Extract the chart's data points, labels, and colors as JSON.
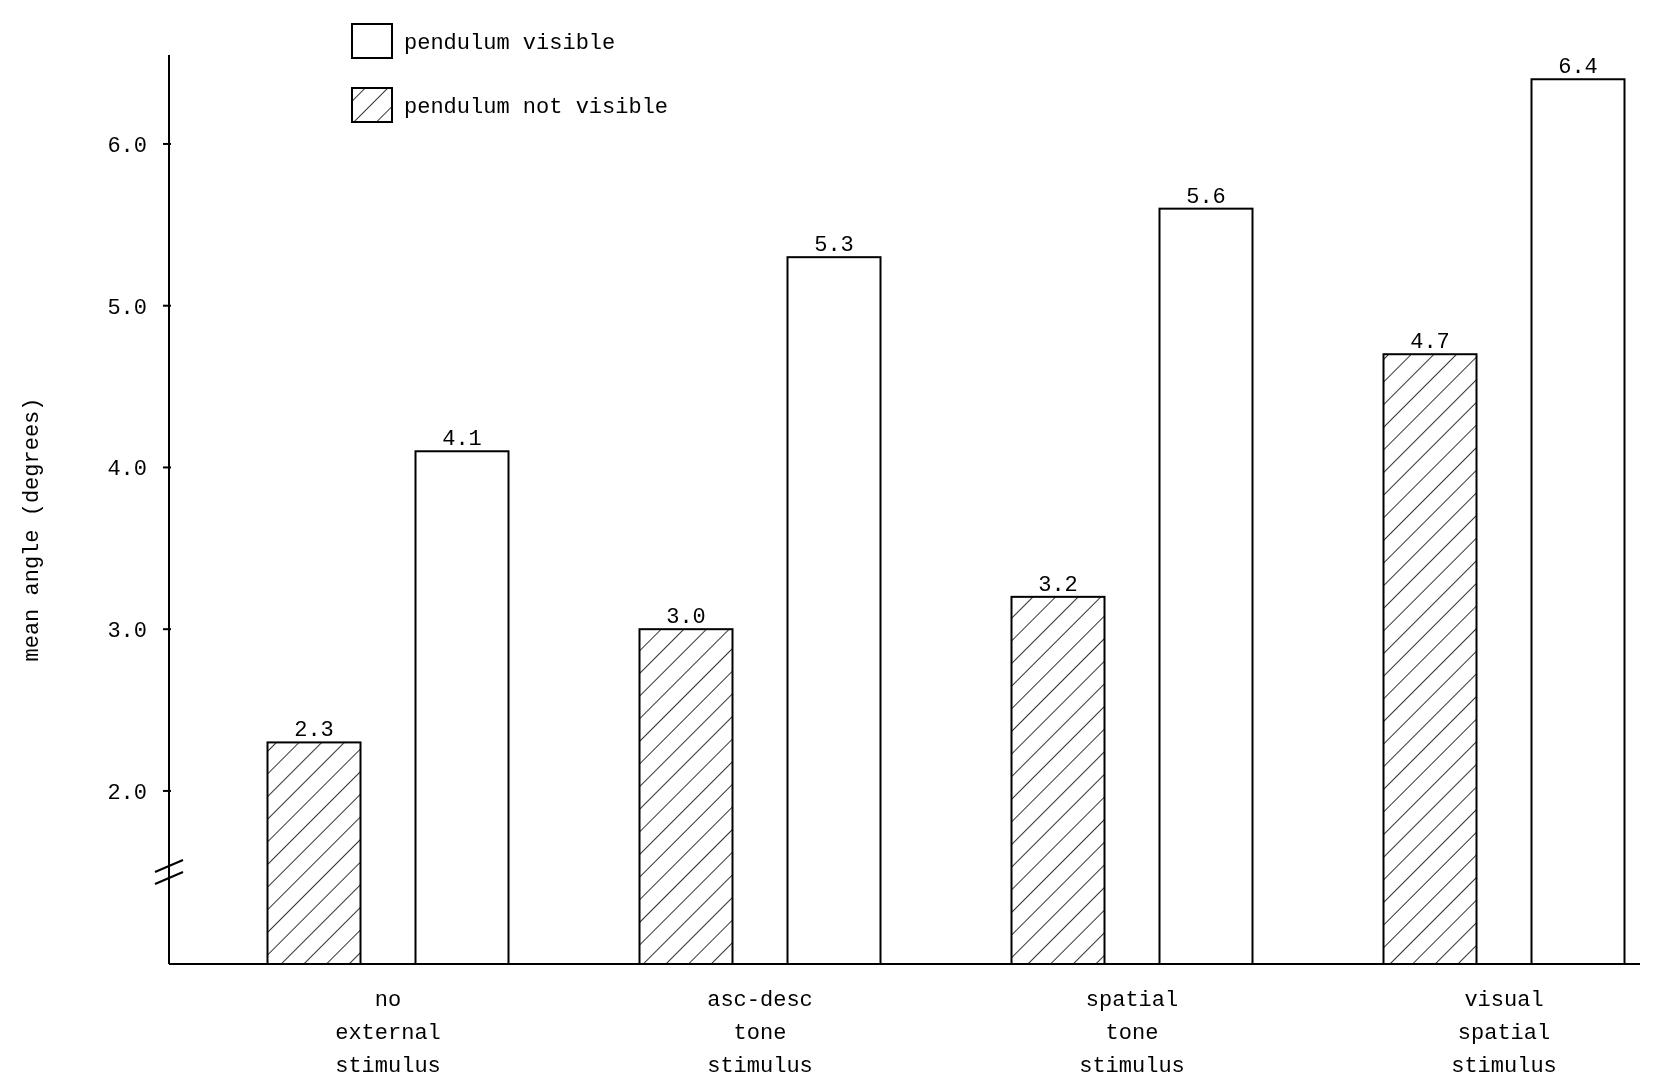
{
  "chart_data": {
    "type": "bar",
    "ylabel": "mean angle (degrees)",
    "categories": [
      "no external stimulus",
      "asc-desc tone stimulus",
      "spatial tone stimulus",
      "visual spatial stimulus"
    ],
    "series": [
      {
        "name": "pendulum not visible",
        "color": "#000000",
        "values": [
          2.3,
          3.0,
          3.2,
          4.7
        ],
        "value_labels": [
          "2.3",
          "3.0",
          "3.2",
          "4.7"
        ]
      },
      {
        "name": "pendulum visible",
        "color": "#ffffff",
        "values": [
          4.1,
          5.3,
          5.6,
          6.4
        ],
        "value_labels": [
          "4.1",
          "5.3",
          "5.6",
          "6.4"
        ]
      }
    ],
    "ylim": [
      0.93,
      6.55
    ],
    "yticks": [
      {
        "value": 2,
        "label": "2.0"
      },
      {
        "value": 3,
        "label": "3.0"
      },
      {
        "value": 4,
        "label": "4.0"
      },
      {
        "value": 5,
        "label": "5.0"
      },
      {
        "value": 6,
        "label": "6.0"
      }
    ],
    "data_labels": true,
    "legend": "top left",
    "grid": false
  }
}
